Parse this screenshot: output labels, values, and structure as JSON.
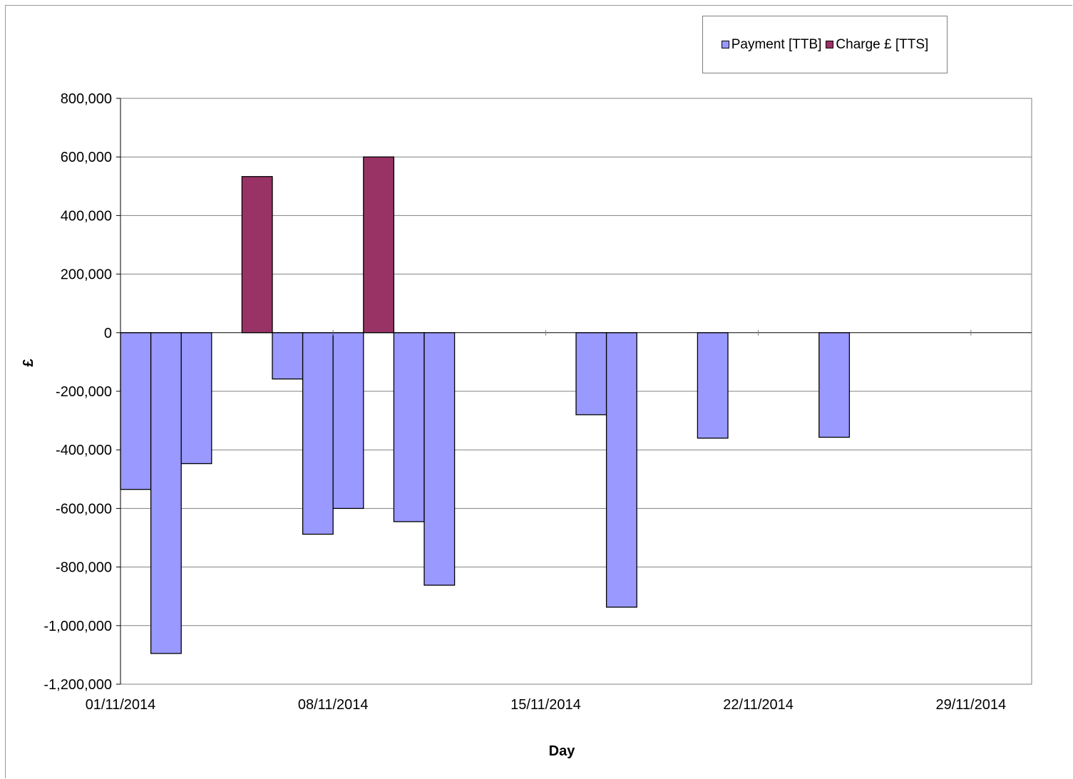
{
  "chart_data": {
    "type": "bar",
    "xlabel": "Day",
    "ylabel": "£",
    "ylim": [
      -1200000,
      800000
    ],
    "yticks": [
      800000,
      600000,
      400000,
      200000,
      0,
      -200000,
      -400000,
      -600000,
      -800000,
      -1000000,
      -1200000
    ],
    "ytick_labels": [
      "800,000",
      "600,000",
      "400,000",
      "200,000",
      "0",
      "-200,000",
      "-400,000",
      "-600,000",
      "-800,000",
      "-1,000,000",
      "-1,200,000"
    ],
    "xlim": [
      "01/11/2014",
      "01/12/2014"
    ],
    "xtick_labels": [
      "01/11/2014",
      "08/11/2014",
      "15/11/2014",
      "22/11/2014",
      "29/11/2014"
    ],
    "grid": "horizontal",
    "legend": "top-right",
    "series": [
      {
        "name": "Payment [TTB]",
        "color": "#9999ff",
        "points": [
          {
            "date": "01/11/2014",
            "value": -535000
          },
          {
            "date": "02/11/2014",
            "value": -1095000
          },
          {
            "date": "03/11/2014",
            "value": -447000
          },
          {
            "date": "06/11/2014",
            "value": -158000
          },
          {
            "date": "07/11/2014",
            "value": -688000
          },
          {
            "date": "08/11/2014",
            "value": -600000
          },
          {
            "date": "10/11/2014",
            "value": -645000
          },
          {
            "date": "11/11/2014",
            "value": -862000
          },
          {
            "date": "16/11/2014",
            "value": -280000
          },
          {
            "date": "17/11/2014",
            "value": -937000
          },
          {
            "date": "20/11/2014",
            "value": -360000
          },
          {
            "date": "24/11/2014",
            "value": -357000
          }
        ]
      },
      {
        "name": "Charge £ [TTS]",
        "color": "#993366",
        "points": [
          {
            "date": "05/11/2014",
            "value": 533000
          },
          {
            "date": "09/11/2014",
            "value": 600000
          }
        ]
      }
    ]
  }
}
